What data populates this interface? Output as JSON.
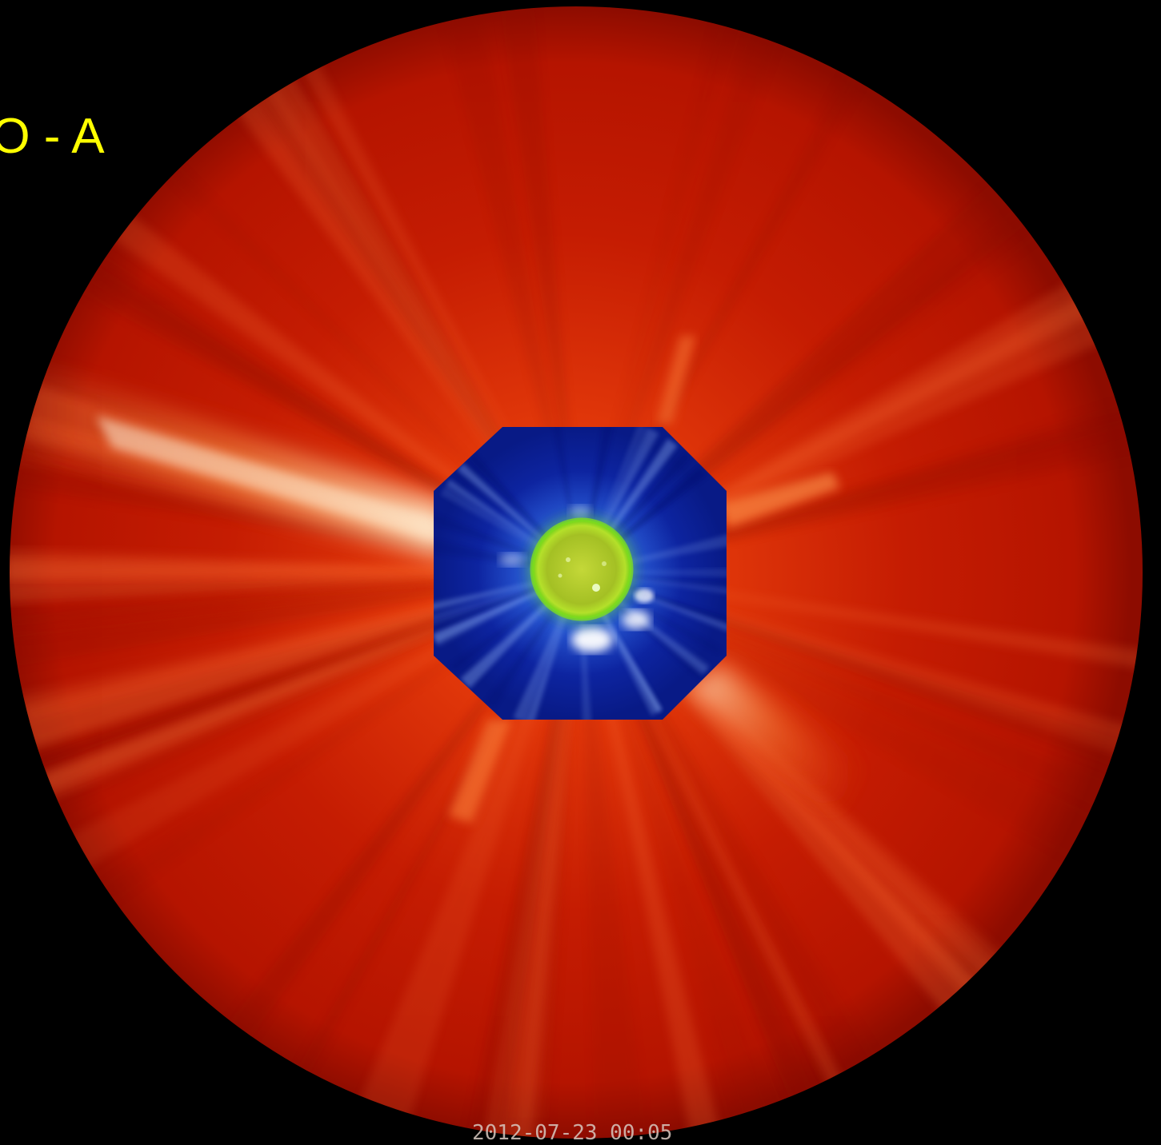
{
  "labels": {
    "instrument": "EO - A",
    "timestamp": "2012-07-23 00:05"
  },
  "colors": {
    "background": "#000000",
    "outer_corona": "#c41800",
    "inner_corona": "#0a1e96",
    "solar_disk": "#9ccc2a",
    "label": "#ffff00"
  },
  "scene": {
    "description_icon": "composite-coronagraph-image",
    "layers": [
      "outer-coronagraph-red",
      "inner-coronagraph-blue",
      "euv-solar-disk-green"
    ]
  }
}
